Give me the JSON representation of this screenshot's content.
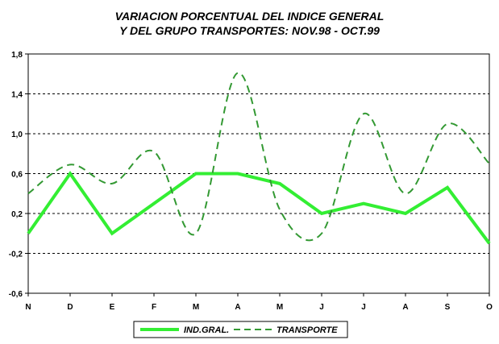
{
  "chart_data": {
    "type": "line",
    "title_line1": "VARIACION PORCENTUAL DEL INDICE GENERAL",
    "title_line2": "Y DEL GRUPO TRANSPORTES: NOV.98 - OCT.99",
    "categories": [
      "N",
      "D",
      "E",
      "F",
      "M",
      "A",
      "M",
      "J",
      "J",
      "A",
      "S",
      "O"
    ],
    "ylim": [
      -0.6,
      1.8
    ],
    "yticks": [
      -0.6,
      -0.2,
      0.2,
      0.6,
      1.0,
      1.4,
      1.8
    ],
    "ytick_labels": [
      "-0,6",
      "-0,2",
      "0,2",
      "0,6",
      "1,0",
      "1,4",
      "1,8"
    ],
    "grid": "horizontal dashed",
    "legend_position": "bottom",
    "series": [
      {
        "name": "IND.GRAL.",
        "color": "#33ee33",
        "style": "solid",
        "values": [
          0.0,
          0.6,
          0.0,
          0.3,
          0.6,
          0.6,
          0.5,
          0.2,
          0.3,
          0.2,
          0.46,
          -0.1
        ]
      },
      {
        "name": "TRANSPORTE",
        "color": "#339933",
        "style": "dashed",
        "values": [
          0.4,
          0.69,
          0.5,
          0.82,
          0.0,
          1.61,
          0.24,
          0.0,
          1.2,
          0.4,
          1.1,
          0.7
        ]
      }
    ]
  }
}
